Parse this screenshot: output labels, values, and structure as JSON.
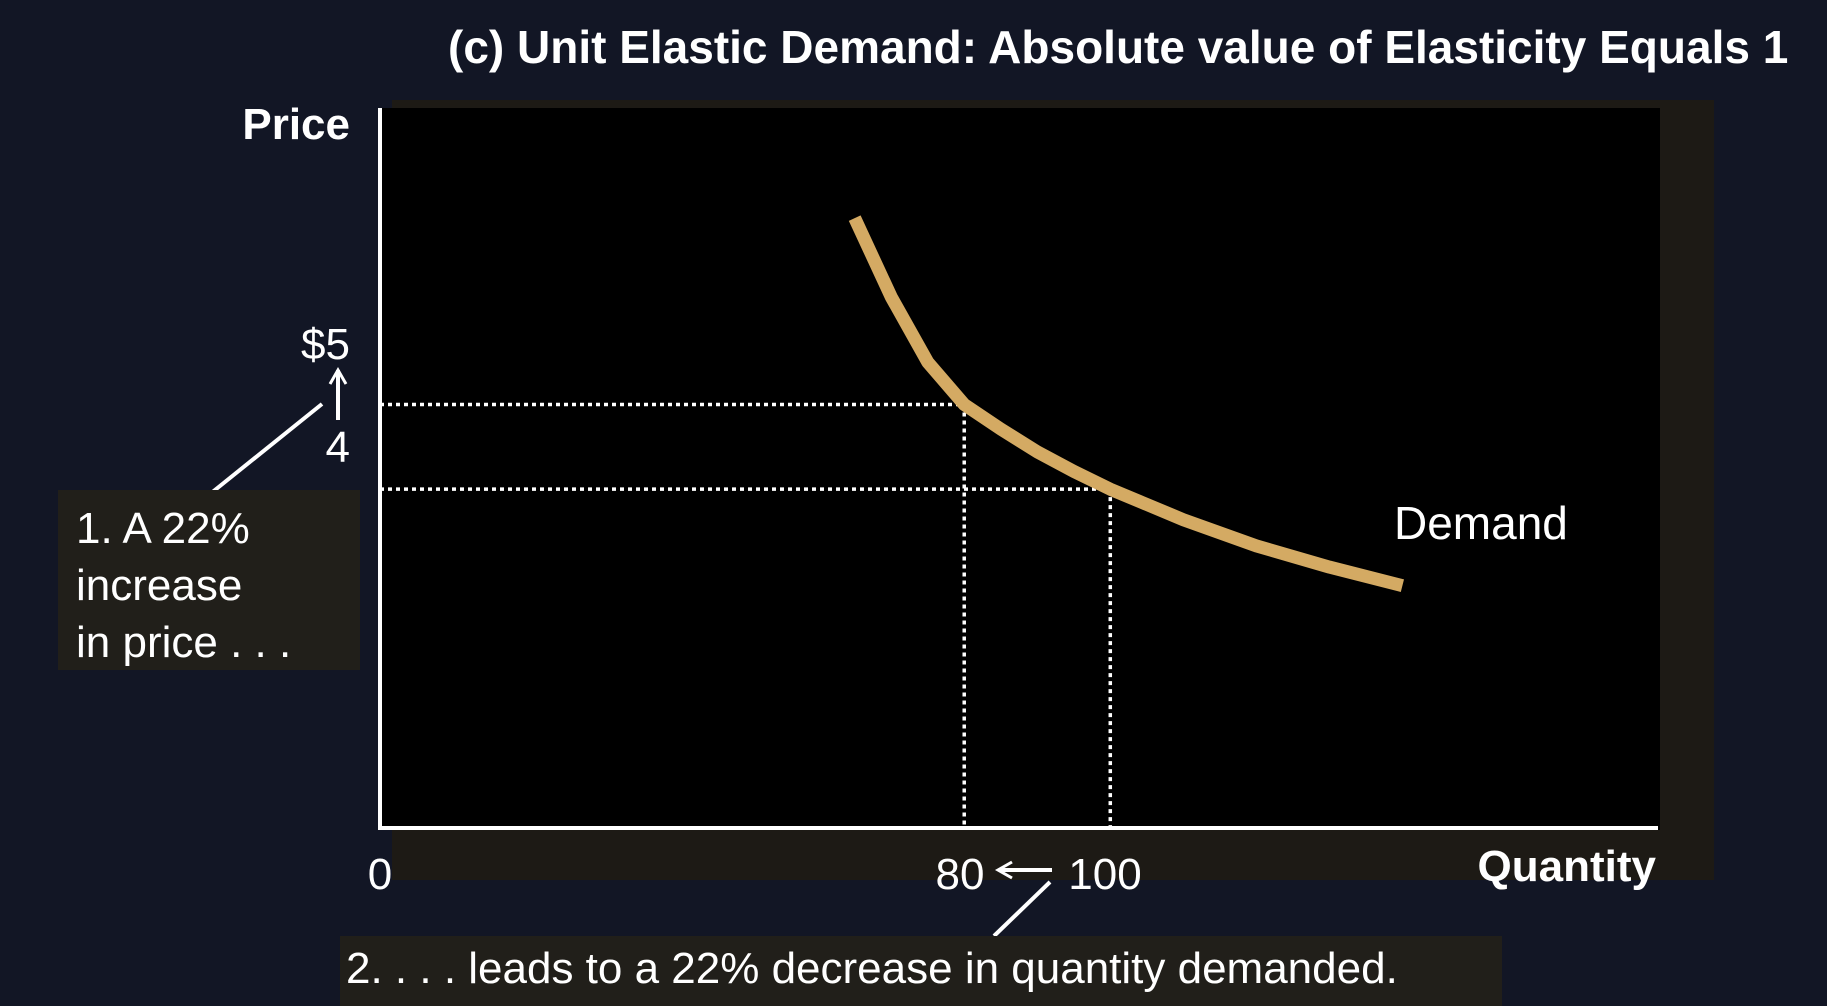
{
  "title": "(c) Unit Elastic Demand: Absolute value of Elasticity Equals 1",
  "chart_data": {
    "type": "line",
    "title": "(c) Unit Elastic Demand: Absolute value of Elasticity Equals 1",
    "xlabel": "Quantity",
    "ylabel": "Price",
    "x_ticks": [
      "0",
      "80",
      "100"
    ],
    "y_ticks": [
      "$5",
      "4"
    ],
    "xlim": [
      0,
      175
    ],
    "ylim": [
      0,
      8.5
    ],
    "grid": false,
    "series": [
      {
        "name": "Demand",
        "color": "#d4aa63",
        "x": [
          65,
          70,
          75,
          80,
          85,
          90,
          95,
          100,
          110,
          120,
          130,
          140
        ],
        "y": [
          7.2,
          6.27,
          5.5,
          5.0,
          4.71,
          4.44,
          4.21,
          4.0,
          3.64,
          3.33,
          3.08,
          2.86
        ]
      }
    ],
    "reference_points": [
      {
        "x": 80,
        "y": 5
      },
      {
        "x": 100,
        "y": 4
      }
    ],
    "annotations": [
      "1. A 22% increase in price . . .",
      "2. . . . leads to a 22% decrease in quantity demanded."
    ]
  },
  "labels": {
    "demand": "Demand",
    "note1_lines": [
      "1. A 22%",
      "increase",
      "in price . . ."
    ],
    "note2": "2. . . . leads to a 22% decrease in quantity demanded."
  }
}
